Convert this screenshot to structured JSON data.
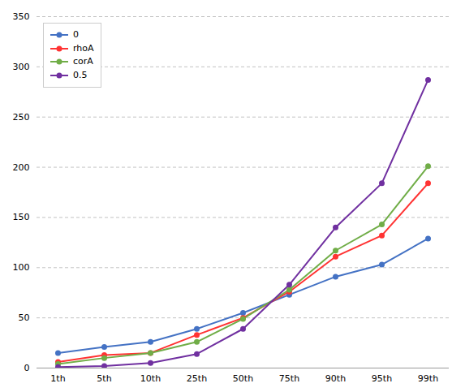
{
  "chart_data": {
    "type": "line",
    "categories": [
      "1th",
      "5th",
      "10th",
      "25th",
      "50th",
      "75th",
      "90th",
      "95th",
      "99th"
    ],
    "series": [
      {
        "name": "0",
        "color": "#4472C4",
        "values": [
          15,
          21,
          26,
          39,
          55,
          73,
          91,
          103,
          129
        ]
      },
      {
        "name": "rhoA",
        "color": "#FF3333",
        "values": [
          6,
          13,
          15,
          33,
          50,
          76,
          111,
          132,
          184
        ]
      },
      {
        "name": "corA",
        "color": "#70AD47",
        "values": [
          4,
          10,
          15,
          26,
          49,
          78,
          117,
          143,
          201
        ]
      },
      {
        "name": "0.5",
        "color": "#7030A0",
        "values": [
          1,
          2,
          5,
          14,
          39,
          83,
          140,
          184,
          287
        ]
      }
    ],
    "ylim": [
      0,
      350
    ],
    "yticks": [
      0,
      50,
      100,
      150,
      200,
      250,
      300,
      350
    ],
    "grid": true,
    "legend": "upper left",
    "marker": "circle"
  }
}
